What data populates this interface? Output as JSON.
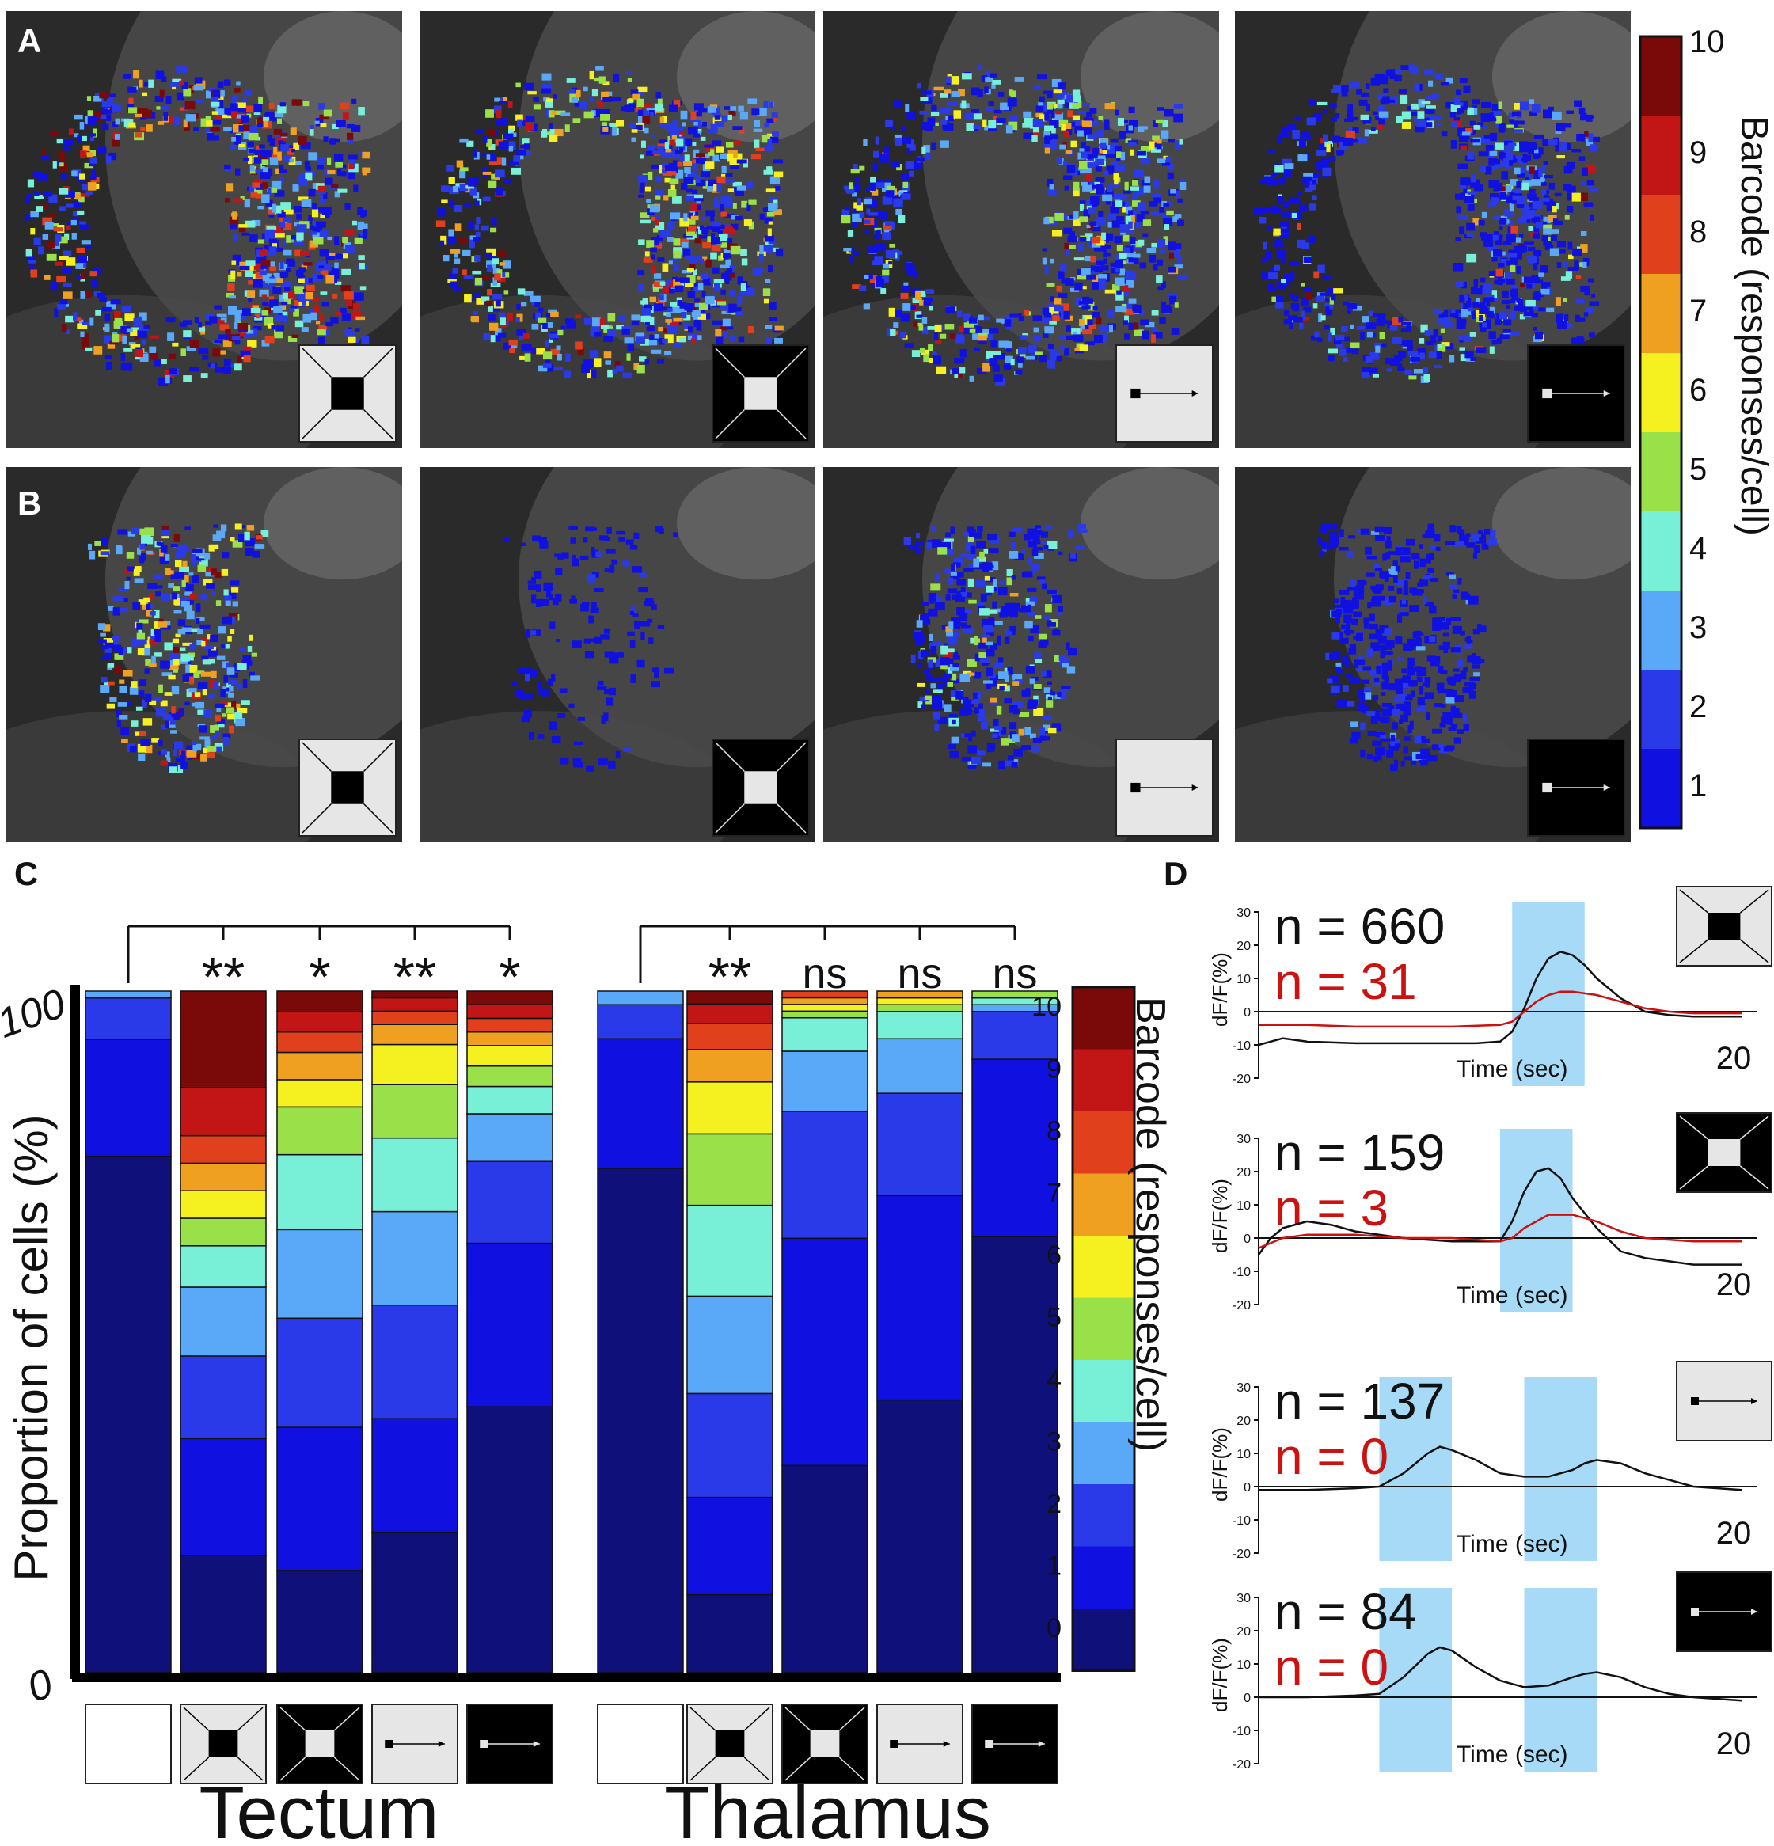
{
  "panels": {
    "A": "A",
    "B": "B",
    "C": "C",
    "D": "D"
  },
  "colorbar_top": {
    "title": "Barcode (responses/cell)",
    "ticks": [
      "10",
      "9",
      "8",
      "7",
      "6",
      "5",
      "4",
      "3",
      "2",
      "1"
    ],
    "colors": [
      "#7a0a0a",
      "#c21616",
      "#e0401c",
      "#f0a020",
      "#f5f020",
      "#9ae048",
      "#78f0d8",
      "#5aa8f8",
      "#2a3ae8",
      "#1010e0"
    ]
  },
  "stimulus_icons": [
    "looming-dark",
    "looming-bright",
    "moving-dark-dot",
    "moving-bright-dot"
  ],
  "chart_data": [
    {
      "type": "bar",
      "title": "",
      "ylabel": "Proportion of cells (%)",
      "ytick_labels": [
        "100",
        "0"
      ],
      "ylim": [
        0,
        100
      ],
      "groups": [
        {
          "name": "Tectum",
          "significance": [
            "**",
            "*",
            "**",
            "*"
          ]
        },
        {
          "name": "Thalamus",
          "significance": [
            "**",
            "ns",
            "ns",
            "ns"
          ]
        }
      ],
      "legend_title": "Barcode (responses/cell)",
      "legend_ticks": [
        "10",
        "9",
        "8",
        "7",
        "6",
        "5",
        "4",
        "3",
        "2",
        "1",
        "0"
      ],
      "legend_colors": [
        "#7a0a0a",
        "#c21616",
        "#e0401c",
        "#f0a020",
        "#f5f020",
        "#9ae048",
        "#78f0d8",
        "#5aa8f8",
        "#2a3ae8",
        "#1010e0",
        "#10107a"
      ],
      "bars": [
        {
          "group": "Tectum",
          "stimulus": "none",
          "segments": [
            75,
            17,
            6,
            1,
            0,
            0,
            0,
            0,
            0,
            0,
            0
          ]
        },
        {
          "group": "Tectum",
          "stimulus": "looming-dark",
          "segments": [
            17,
            17,
            12,
            10,
            6,
            4,
            4,
            4,
            4,
            7,
            14
          ]
        },
        {
          "group": "Tectum",
          "stimulus": "looming-bright",
          "segments": [
            15,
            21,
            16,
            13,
            11,
            7,
            4,
            4,
            3,
            3,
            3
          ]
        },
        {
          "group": "Tectum",
          "stimulus": "moving-dark-dot",
          "segments": [
            21,
            17,
            17,
            14,
            11,
            8,
            6,
            3,
            2,
            2,
            1
          ]
        },
        {
          "group": "Tectum",
          "stimulus": "moving-bright-dot",
          "segments": [
            39,
            24,
            12,
            7,
            4,
            3,
            3,
            2,
            2,
            2,
            2
          ]
        },
        {
          "group": "Thalamus",
          "stimulus": "none",
          "segments": [
            74,
            19,
            5,
            2,
            0,
            0,
            0,
            0,
            0,
            0,
            0
          ]
        },
        {
          "group": "Thalamus",
          "stimulus": "looming-dark",
          "segments": [
            12,
            15,
            16,
            15,
            14,
            11,
            8,
            5,
            4,
            3,
            2
          ]
        },
        {
          "group": "Thalamus",
          "stimulus": "looming-bright",
          "segments": [
            31,
            34,
            19,
            9,
            5,
            1,
            1,
            1,
            1,
            0,
            0
          ]
        },
        {
          "group": "Thalamus",
          "stimulus": "moving-dark-dot",
          "segments": [
            40,
            30,
            15,
            8,
            4,
            1,
            1,
            1,
            0,
            0,
            0
          ]
        },
        {
          "group": "Thalamus",
          "stimulus": "moving-bright-dot",
          "segments": [
            64,
            26,
            7,
            1,
            1,
            1,
            0,
            0,
            0,
            0,
            0
          ]
        }
      ]
    },
    {
      "type": "line",
      "xlabel": "Time (sec)",
      "ylabel": "dF/F(%)",
      "x_tick_labels": [
        "20"
      ],
      "yticks": [
        30,
        20,
        10,
        0,
        -10,
        -20
      ],
      "xlim": [
        0,
        20
      ],
      "ylim": [
        -20,
        30
      ],
      "subplots": [
        {
          "n_black": "n = 660",
          "n_red": "n = 31",
          "stimulus": "looming-dark",
          "stim_windows": [
            [
              10.5,
              13.5
            ]
          ],
          "series": [
            {
              "color": "#111111",
              "x": [
                0,
                1,
                2,
                4,
                6,
                8,
                9,
                10,
                10.5,
                11,
                11.5,
                12,
                12.5,
                13,
                13.5,
                14,
                15,
                16,
                17,
                18,
                20
              ],
              "y": [
                -10,
                -8,
                -9,
                -9.5,
                -9.5,
                -9.5,
                -9.5,
                -9,
                -6,
                1,
                10,
                16,
                18,
                17,
                14,
                10,
                4,
                0,
                -1,
                -1.5,
                -1.5
              ]
            },
            {
              "color": "#cc1111",
              "x": [
                0,
                2,
                4,
                6,
                8,
                10,
                10.5,
                11,
                11.5,
                12,
                12.5,
                13,
                14,
                15,
                16,
                17,
                18,
                20
              ],
              "y": [
                -4,
                -4,
                -4.5,
                -4.5,
                -4.5,
                -4,
                -3,
                0,
                3,
                5,
                6,
                6,
                5,
                3,
                1,
                0,
                -0.5,
                -0.5
              ]
            }
          ]
        },
        {
          "n_black": "n = 159",
          "n_red": "n = 3",
          "stimulus": "looming-bright",
          "stim_windows": [
            [
              10,
              13
            ]
          ],
          "series": [
            {
              "color": "#111111",
              "x": [
                0,
                0.5,
                1,
                2,
                3,
                4,
                6,
                8,
                9,
                10,
                10.5,
                11,
                11.5,
                12,
                12.5,
                13,
                14,
                15,
                16,
                17,
                18,
                20
              ],
              "y": [
                -5,
                0,
                3,
                5,
                4,
                2,
                0,
                -1,
                -1,
                -1,
                5,
                14,
                20,
                21,
                18,
                12,
                3,
                -4,
                -6,
                -7,
                -8,
                -8
              ]
            },
            {
              "color": "#cc1111",
              "x": [
                0,
                1,
                2,
                4,
                6,
                8,
                10,
                10.5,
                11,
                12,
                13,
                14,
                15,
                16,
                18,
                20
              ],
              "y": [
                -3,
                0,
                1,
                1,
                0,
                0,
                -1,
                0,
                3,
                7,
                7,
                5,
                2,
                0,
                -1,
                -1
              ]
            }
          ]
        },
        {
          "n_black": "n = 137",
          "n_red": "n = 0",
          "stimulus": "moving-dark-dot",
          "stim_windows": [
            [
              5,
              8
            ],
            [
              11,
              14
            ]
          ],
          "series": [
            {
              "color": "#111111",
              "x": [
                0,
                2,
                4,
                5,
                6,
                7,
                7.5,
                8,
                9,
                10,
                11,
                12,
                13,
                13.5,
                14,
                15,
                16,
                17,
                18,
                20
              ],
              "y": [
                -1,
                -1,
                -0.5,
                0,
                4,
                10,
                12,
                11,
                8,
                4,
                3,
                3,
                5,
                7,
                8,
                7,
                4,
                2,
                0,
                -1
              ]
            }
          ]
        },
        {
          "n_black": "n = 84",
          "n_red": "n = 0",
          "stimulus": "moving-bright-dot",
          "stim_windows": [
            [
              5,
              8
            ],
            [
              11,
              14
            ]
          ],
          "series": [
            {
              "color": "#111111",
              "x": [
                0,
                2,
                4,
                5,
                6,
                7,
                7.5,
                8,
                9,
                10,
                11,
                12,
                13,
                13.5,
                14,
                15,
                16,
                17,
                18,
                20
              ],
              "y": [
                0,
                0,
                0.5,
                1,
                6,
                13,
                15,
                14,
                9,
                5,
                3,
                3.5,
                6,
                7,
                7.5,
                6,
                3,
                1,
                0,
                -1
              ]
            }
          ]
        }
      ]
    }
  ],
  "chart_c_xlabels": {
    "tectum": "Tectum",
    "thalamus": "Thalamus"
  }
}
